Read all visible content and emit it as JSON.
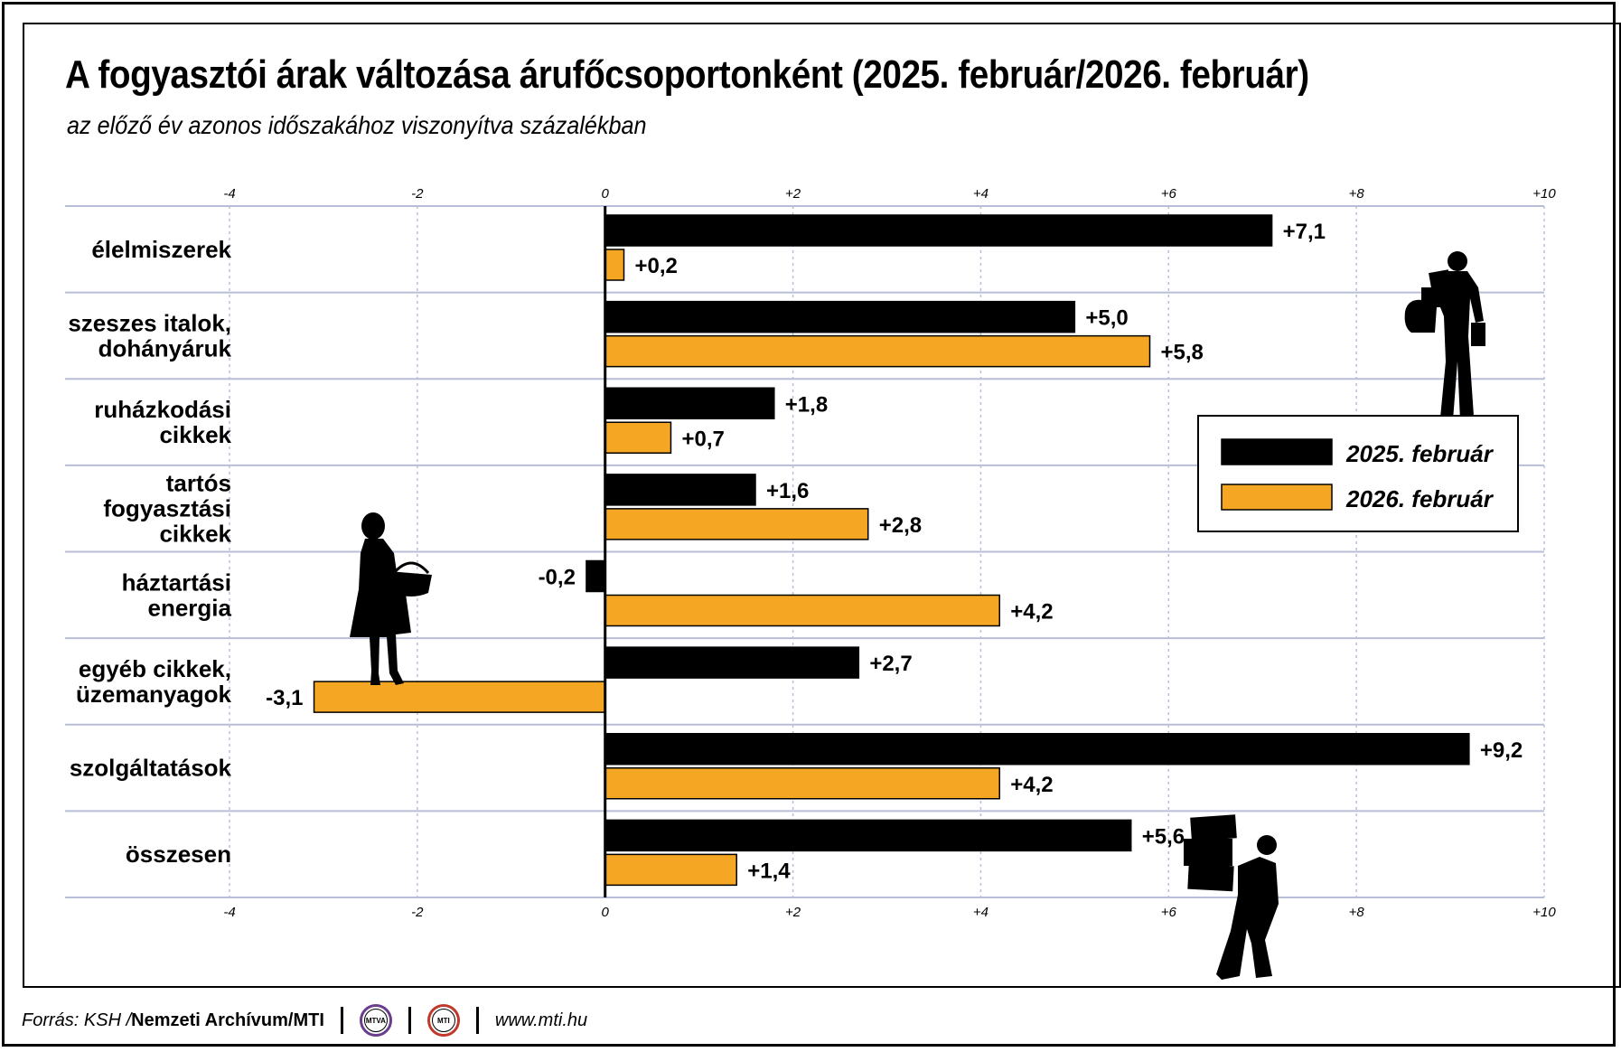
{
  "title": "A fogyasztói árak változása árufőcsoportonként (2025. február/2026. február)",
  "subtitle": "az előző év azonos időszakához viszonyítva százalékban",
  "colors": {
    "series_2025": "#000000",
    "series_2026": "#f5a623",
    "grid": "#b9bed8"
  },
  "chart_data": {
    "type": "bar",
    "orientation": "horizontal",
    "categories": [
      "élelmiszerek",
      "szeszes italok, dohányáruk",
      "ruházkodási cikkek",
      "tartós fogyasztási cikkek",
      "háztartási energia",
      "egyéb cikkek, üzemanyagok",
      "szolgáltatások",
      "összesen"
    ],
    "category_lines": [
      [
        "élelmiszerek"
      ],
      [
        "szeszes italok,",
        "dohányáruk"
      ],
      [
        "ruházkodási",
        "cikkek"
      ],
      [
        "tartós",
        "fogyasztási",
        "cikkek"
      ],
      [
        "háztartási",
        "energia"
      ],
      [
        "egyéb cikkek,",
        "üzemanyagok"
      ],
      [
        "szolgáltatások"
      ],
      [
        "összesen"
      ]
    ],
    "series": [
      {
        "name": "2025. február",
        "values": [
          7.1,
          5.0,
          1.8,
          1.6,
          -0.2,
          2.7,
          9.2,
          5.6
        ],
        "labels": [
          "+7,1",
          "+5,0",
          "+1,8",
          "+1,6",
          "-0,2",
          "+2,7",
          "+9,2",
          "+5,6"
        ]
      },
      {
        "name": "2026. február",
        "values": [
          0.2,
          5.8,
          0.7,
          2.8,
          4.2,
          -3.1,
          4.2,
          1.4
        ],
        "labels": [
          "+0,2",
          "+5,8",
          "+0,7",
          "+2,8",
          "+4,2",
          "-3,1",
          "+4,2",
          "+1,4"
        ]
      }
    ],
    "xlim": [
      -4,
      10
    ],
    "ticks": [
      -4,
      -2,
      0,
      2,
      4,
      6,
      8,
      10
    ],
    "tick_labels": [
      "-4",
      "-2",
      "0",
      "+2",
      "+4",
      "+6",
      "+8",
      "+10"
    ],
    "grid": true,
    "legend_position": "right"
  },
  "footer": {
    "source_prefix": "Forrás: KSH / ",
    "source_archive": "Nemzeti Archívum",
    "source_sep": " / ",
    "source_mti": "MTI",
    "logo1": "MTVA",
    "logo2": "MTI",
    "url": "www.mti.hu"
  }
}
